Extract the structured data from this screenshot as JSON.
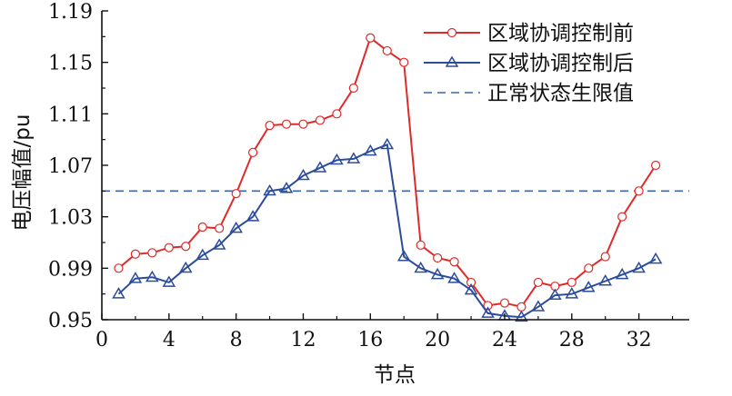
{
  "chart_data": {
    "type": "line",
    "xlabel": "节点",
    "ylabel": "电压幅值/pu",
    "xlim": [
      0,
      35
    ],
    "ylim": [
      0.95,
      1.19
    ],
    "xticks": [
      0,
      4,
      8,
      12,
      16,
      20,
      24,
      28,
      32
    ],
    "yticks": [
      0.95,
      0.99,
      1.03,
      1.07,
      1.11,
      1.15,
      1.19
    ],
    "x": [
      1,
      2,
      3,
      4,
      5,
      6,
      7,
      8,
      9,
      10,
      11,
      12,
      13,
      14,
      15,
      16,
      17,
      18,
      19,
      20,
      21,
      22,
      23,
      24,
      25,
      26,
      27,
      28,
      29,
      30,
      31,
      32,
      33
    ],
    "series": [
      {
        "name": "区域协调控制前",
        "color": "#e02a2a",
        "marker": "circle",
        "values": [
          0.99,
          1.001,
          1.002,
          1.006,
          1.007,
          1.022,
          1.021,
          1.048,
          1.08,
          1.101,
          1.102,
          1.102,
          1.105,
          1.11,
          1.13,
          1.169,
          1.159,
          1.15,
          1.008,
          0.998,
          0.995,
          0.979,
          0.961,
          0.963,
          0.96,
          0.979,
          0.976,
          0.979,
          0.99,
          0.999,
          1.03,
          1.05,
          1.07
        ]
      },
      {
        "name": "区域协调控制后",
        "color": "#2b4c9b",
        "marker": "triangle",
        "values": [
          0.97,
          0.982,
          0.983,
          0.979,
          0.99,
          1.0,
          1.008,
          1.021,
          1.03,
          1.05,
          1.052,
          1.062,
          1.068,
          1.074,
          1.075,
          1.081,
          1.086,
          0.999,
          0.99,
          0.985,
          0.982,
          0.973,
          0.955,
          0.953,
          0.952,
          0.96,
          0.969,
          0.97,
          0.975,
          0.98,
          0.985,
          0.99,
          0.997
        ]
      }
    ],
    "reference_lines": [
      {
        "name": "正常状态生限值",
        "y": 1.05,
        "color": "#3a66a8",
        "style": "dashed"
      }
    ],
    "legend": "top-right",
    "grid": false
  }
}
